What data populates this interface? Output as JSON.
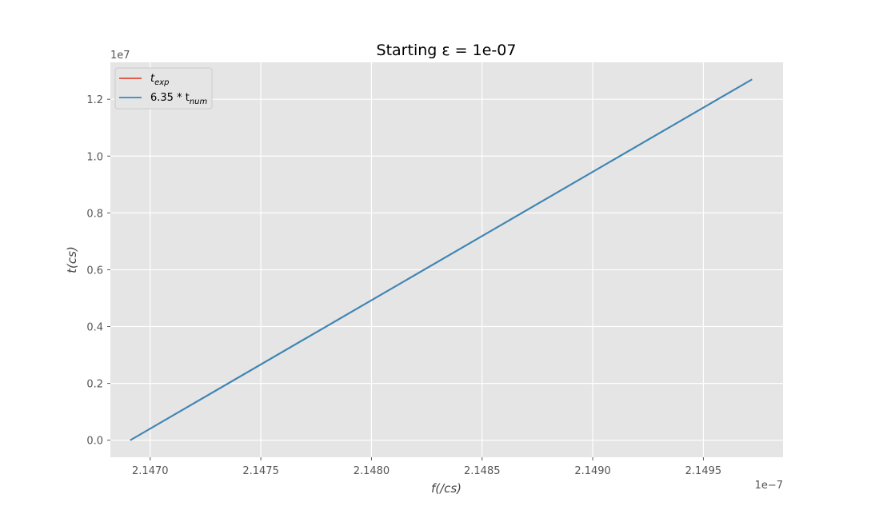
{
  "chart_data": {
    "type": "line",
    "title": "Starting ε = 1e-07",
    "xlabel": "f(/cs)",
    "ylabel": "t(cs)",
    "x_offset_label": "1e−7",
    "y_offset_label": "1e7",
    "xlim": [
      2.14682,
      2.14986
    ],
    "ylim": [
      -0.06,
      1.33
    ],
    "x_ticks": [
      2.147,
      2.1475,
      2.148,
      2.1485,
      2.149,
      2.1495
    ],
    "x_tick_labels": [
      "2.1470",
      "2.1475",
      "2.1480",
      "2.1485",
      "2.1490",
      "2.1495"
    ],
    "y_ticks": [
      0.0,
      0.2,
      0.4,
      0.6,
      0.8,
      1.0,
      1.2
    ],
    "y_tick_labels": [
      "0.0",
      "0.2",
      "0.4",
      "0.6",
      "0.8",
      "1.0",
      "1.2"
    ],
    "grid": true,
    "legend_position": "top-left",
    "series": [
      {
        "name": "t_exp",
        "name_main": "t",
        "name_sub": "exp",
        "color": "#e24a33",
        "x": [
          2.14691,
          2.14972
        ],
        "y": [
          0.0,
          1.27
        ]
      },
      {
        "name": "6.35 * t_num",
        "name_main": "6.35 * t",
        "name_sub": "num",
        "color": "#348abd",
        "x": [
          2.14691,
          2.14972
        ],
        "y": [
          0.0,
          1.27
        ]
      }
    ]
  }
}
